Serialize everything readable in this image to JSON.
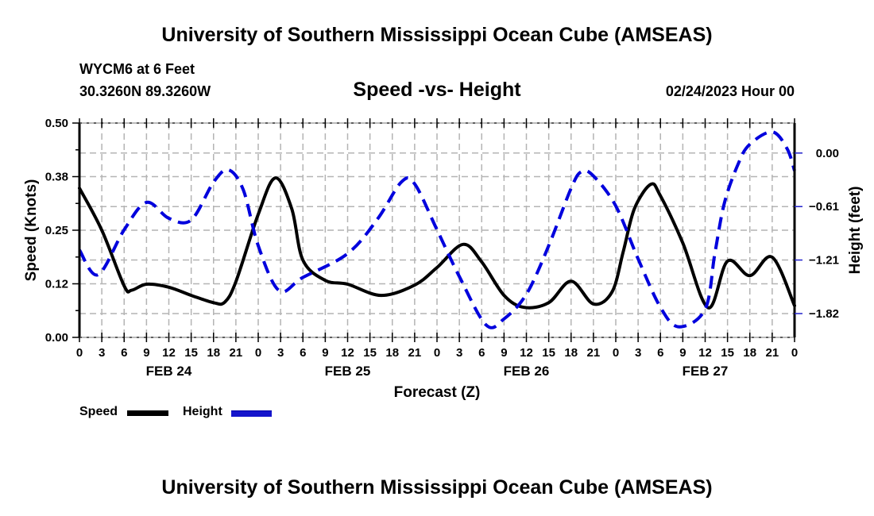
{
  "header": {
    "title": "University of Southern Mississippi Ocean Cube (AMSEAS)",
    "station": "WYCM6 at 6 Feet",
    "location": "30.3260N  89.3260W",
    "datetime": "02/24/2023 Hour 00"
  },
  "footer": {
    "title": "University of Southern Mississippi Ocean Cube (AMSEAS)"
  },
  "chart_data": {
    "type": "line",
    "title": "Speed -vs- Height",
    "xlabel": "Forecast (Z)",
    "ylabel": "Speed (Knots)",
    "y2label": "Height (feet)",
    "xlim": [
      0,
      96
    ],
    "ylim": [
      0,
      0.5
    ],
    "y2lim": [
      -2.09,
      0.34
    ],
    "grid": true,
    "legend_position": "bottom-left",
    "x_tick_labels": [
      "0",
      "3",
      "6",
      "9",
      "12",
      "15",
      "18",
      "21",
      "0",
      "3",
      "6",
      "9",
      "12",
      "15",
      "18",
      "21",
      "0",
      "3",
      "6",
      "9",
      "12",
      "15",
      "18",
      "21",
      "0",
      "3",
      "6",
      "9",
      "12",
      "15",
      "18",
      "21",
      "0"
    ],
    "day_labels": [
      {
        "label": "FEB 24",
        "hour": 12
      },
      {
        "label": "FEB 25",
        "hour": 36
      },
      {
        "label": "FEB 26",
        "hour": 60
      },
      {
        "label": "FEB 27",
        "hour": 84
      }
    ],
    "y_ticks": [
      0.0,
      0.125,
      0.25,
      0.375,
      0.5
    ],
    "y_tick_labels": [
      "0.00",
      "0.12",
      "0.25",
      "0.38",
      "0.50"
    ],
    "y2_ticks": [
      0.0,
      -0.607,
      -1.213,
      -1.82
    ],
    "y2_tick_labels": [
      "0.00",
      "−0.61",
      "−1.21",
      "−1.82"
    ],
    "series": [
      {
        "name": "Speed",
        "axis": "left",
        "color": "#000000",
        "style": "solid",
        "x": [
          0,
          3,
          6,
          7,
          9,
          12,
          15,
          18,
          19.5,
          21,
          24,
          26.3,
          28.5,
          30,
          33,
          36,
          40.5,
          45,
          48,
          51.5,
          54,
          57,
          59.7,
          63,
          66,
          69,
          71.5,
          73,
          74.5,
          76.7,
          78,
          81,
          84.4,
          87,
          90,
          93,
          96
        ],
        "values": [
          0.348,
          0.25,
          0.12,
          0.11,
          0.124,
          0.117,
          0.098,
          0.081,
          0.082,
          0.13,
          0.287,
          0.372,
          0.3,
          0.18,
          0.133,
          0.124,
          0.098,
          0.122,
          0.163,
          0.217,
          0.176,
          0.098,
          0.07,
          0.081,
          0.131,
          0.078,
          0.106,
          0.2,
          0.3,
          0.357,
          0.33,
          0.22,
          0.069,
          0.178,
          0.144,
          0.187,
          0.074
        ]
      },
      {
        "name": "Height",
        "axis": "right",
        "color": "#0000dd",
        "style": "dashed",
        "x": [
          0,
          2.5,
          6,
          9,
          12,
          15,
          18,
          20,
          22,
          24,
          26.8,
          30,
          36,
          40,
          43.2,
          45,
          48,
          51,
          54.6,
          57,
          60,
          63,
          66,
          67.4,
          69,
          72,
          75,
          78,
          80.5,
          84,
          85.3,
          86.6,
          88.5,
          90,
          93,
          95,
          96
        ],
        "values": [
          -1.1,
          -1.38,
          -0.87,
          -0.56,
          -0.74,
          -0.76,
          -0.33,
          -0.19,
          -0.42,
          -1.05,
          -1.56,
          -1.41,
          -1.14,
          -0.75,
          -0.33,
          -0.35,
          -0.87,
          -1.4,
          -1.95,
          -1.88,
          -1.6,
          -1.05,
          -0.4,
          -0.21,
          -0.26,
          -0.6,
          -1.2,
          -1.75,
          -1.97,
          -1.77,
          -1.14,
          -0.56,
          -0.11,
          0.1,
          0.24,
          0.05,
          -0.2
        ]
      }
    ]
  },
  "legend": {
    "speed_label": "Speed",
    "height_label": "Height"
  }
}
